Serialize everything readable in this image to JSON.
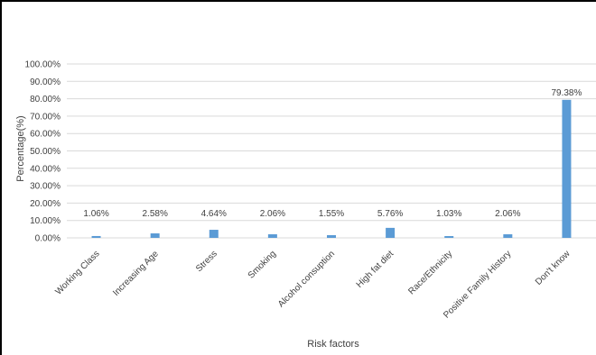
{
  "chart_data": {
    "type": "bar",
    "categories": [
      "Working Class",
      "Increasing Age",
      "Stress",
      "Smoking",
      "Alcohol consuption",
      "High fat diet",
      "Race/Ethnicity",
      "Positive Family History",
      "Don't know"
    ],
    "values": [
      1.06,
      2.58,
      4.64,
      2.06,
      1.55,
      5.76,
      1.03,
      2.06,
      79.38
    ],
    "data_labels": [
      "1.06%",
      "2.58%",
      "4.64%",
      "2.06%",
      "1.55%",
      "5.76%",
      "1.03%",
      "2.06%",
      "79.38%"
    ],
    "xlabel": "Risk factors",
    "ylabel": "Percentage(%)",
    "ylim": [
      0,
      100
    ],
    "yticks": [
      0,
      10,
      20,
      30,
      40,
      50,
      60,
      70,
      80,
      90,
      100
    ],
    "ytick_labels": [
      "0.00%",
      "10.00%",
      "20.00%",
      "30.00%",
      "40.00%",
      "50.00%",
      "60.00%",
      "70.00%",
      "80.00%",
      "90.00%",
      "100.00%"
    ],
    "grid": true,
    "colors": {
      "bar": "#5b9bd5",
      "grid": "#d9d9d9",
      "text": "#404040"
    }
  }
}
